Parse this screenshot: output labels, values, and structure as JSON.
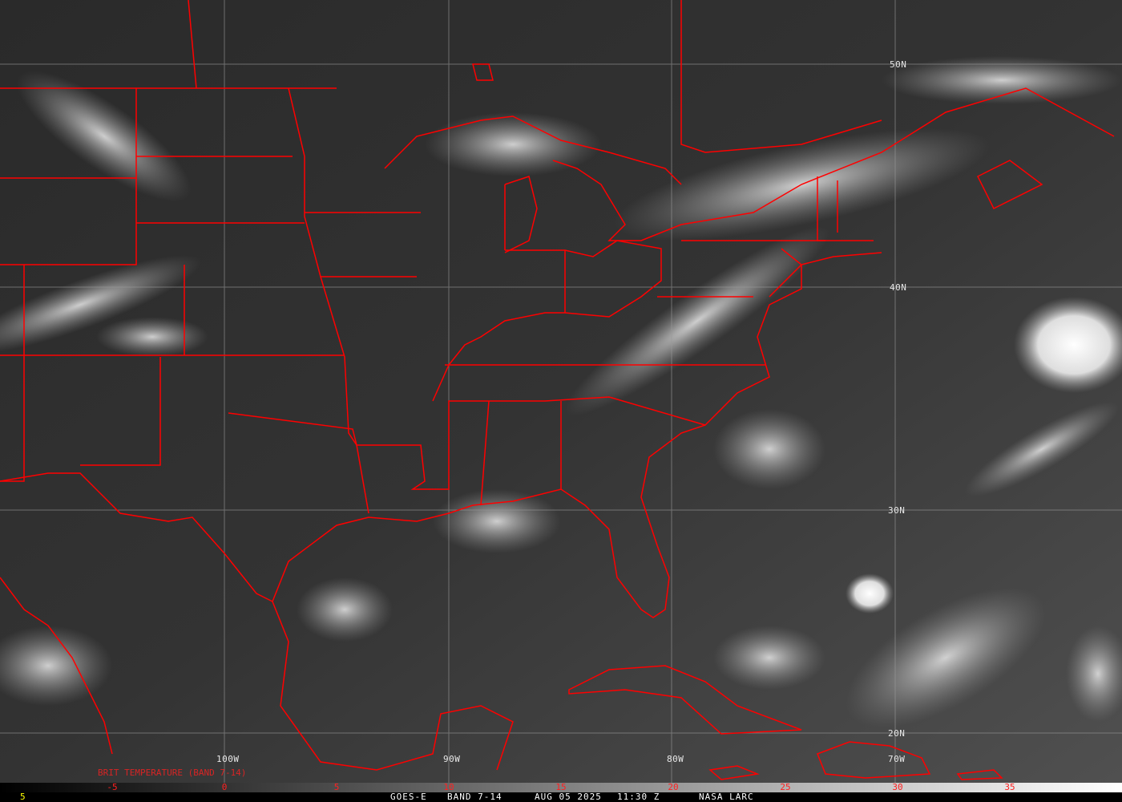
{
  "satellite": "GOES-E",
  "band": "BAND 7-14",
  "date": "AUG 05 2025",
  "time": "11:30 Z",
  "source": "NASA LARC",
  "product_label": "BRIT TEMPERATURE (BAND 7-14)",
  "frame_number": "5",
  "latitude_labels": [
    "50N",
    "40N",
    "30N",
    "20N"
  ],
  "longitude_labels": [
    "100W",
    "90W",
    "80W",
    "70W"
  ],
  "colorbar": {
    "ticks": [
      "-5",
      "0",
      "5",
      "10",
      "15",
      "20",
      "25",
      "30",
      "35"
    ],
    "range": [
      -10,
      40
    ],
    "colormap": "grayscale dark-to-white"
  },
  "colors": {
    "borders": "#ff0000",
    "background": "#2e2e2e",
    "grid": "#9a9a9a",
    "frame_number": "#ffff00"
  }
}
